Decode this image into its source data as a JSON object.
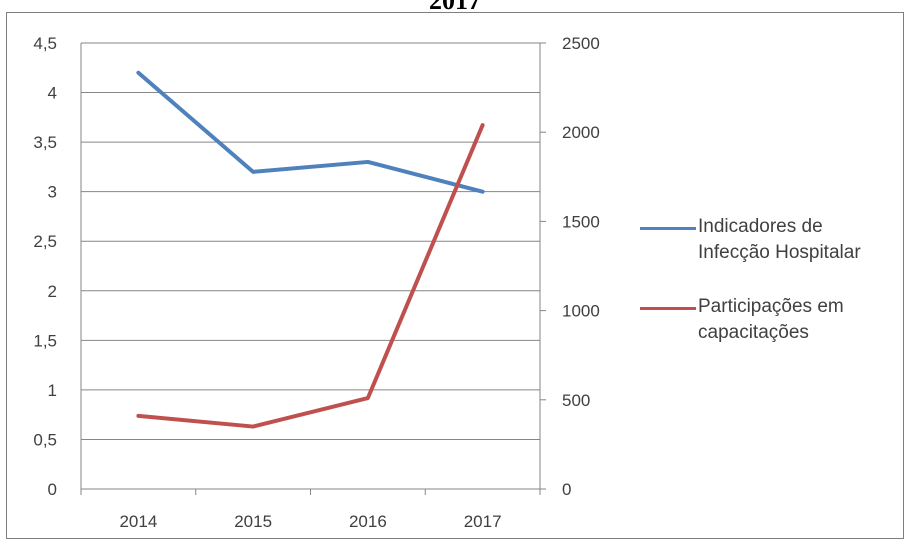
{
  "title_fragment": "2017",
  "chart_data": {
    "type": "line",
    "title": "",
    "categories": [
      "2014",
      "2015",
      "2016",
      "2017"
    ],
    "y_left": {
      "ylim": [
        0,
        4.5
      ],
      "ticks": [
        "0",
        "0,5",
        "1",
        "1,5",
        "2",
        "2,5",
        "3",
        "3,5",
        "4",
        "4,5"
      ]
    },
    "y_right": {
      "ylim": [
        0,
        2500
      ],
      "ticks": [
        "0",
        "500",
        "1000",
        "1500",
        "2000",
        "2500"
      ]
    },
    "grid": true,
    "legend": "right",
    "series": [
      {
        "name": "Indicadores de Infecção Hospitalar",
        "axis": "left",
        "color": "#4f81bd",
        "values": [
          4.2,
          3.2,
          3.3,
          3.0
        ]
      },
      {
        "name": "Participações em capacitações",
        "axis": "right",
        "color": "#c0504d",
        "values": [
          410,
          350,
          510,
          2040
        ]
      }
    ],
    "legend_lines": [
      [
        "Indicadores de",
        "Infecção Hospitalar"
      ],
      [
        "Participações em",
        "capacitações"
      ]
    ]
  }
}
